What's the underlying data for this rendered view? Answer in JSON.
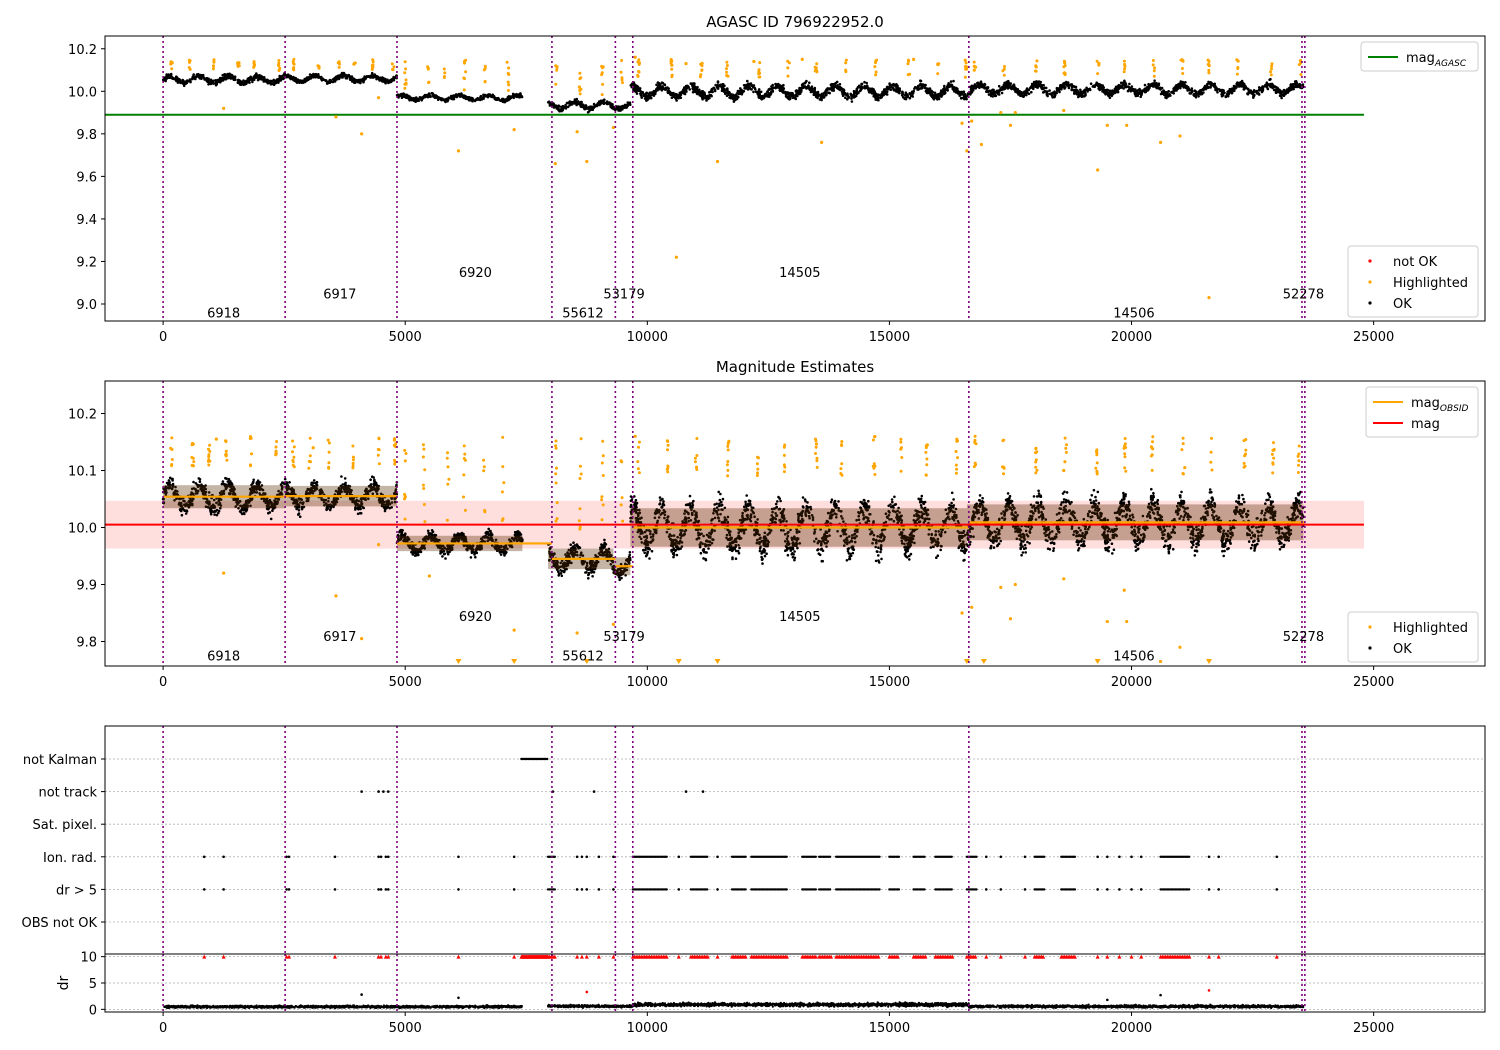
{
  "chart_data": [
    {
      "type": "scatter",
      "title": "AGASC ID 796922952.0",
      "xlim": [
        -1200,
        27300
      ],
      "ylim": [
        8.92,
        10.26
      ],
      "xticks": [
        0,
        5000,
        10000,
        15000,
        20000,
        25000
      ],
      "yticks": [
        9.0,
        9.2,
        9.4,
        9.6,
        9.8,
        10.0,
        10.2
      ],
      "xtick_labels": [
        "0",
        "5000",
        "10000",
        "15000",
        "20000",
        "25000"
      ],
      "ytick_labels": [
        "9.0",
        "9.2",
        "9.4",
        "9.6",
        "9.8",
        "10.0",
        "10.2"
      ],
      "hline": {
        "name": "mag_AGASC",
        "y": 9.89,
        "xmin": -1200,
        "xmax": 24800,
        "color": "#008000"
      },
      "ok_segments": [
        {
          "x0": 0,
          "x1": 2520,
          "ymid": 10.055,
          "spread": 0.035
        },
        {
          "x0": 2520,
          "x1": 4830,
          "ymid": 10.06,
          "spread": 0.03
        },
        {
          "x0": 4830,
          "x1": 7420,
          "ymid": 9.97,
          "spread": 0.025
        },
        {
          "x0": 7950,
          "x1": 9300,
          "ymid": 9.935,
          "spread": 0.035
        },
        {
          "x0": 9300,
          "x1": 9650,
          "ymid": 9.93,
          "spread": 0.03
        },
        {
          "x0": 9650,
          "x1": 16600,
          "ymid": 10.0,
          "spread": 0.055
        },
        {
          "x0": 16600,
          "x1": 23550,
          "ymid": 10.01,
          "spread": 0.05
        }
      ],
      "highlighted_points": [
        {
          "x": 1250,
          "y": 9.92
        },
        {
          "x": 4100,
          "y": 9.8
        },
        {
          "x": 3570,
          "y": 9.88
        },
        {
          "x": 4450,
          "y": 9.97
        },
        {
          "x": 6100,
          "y": 9.72
        },
        {
          "x": 7250,
          "y": 9.82
        },
        {
          "x": 8100,
          "y": 9.66
        },
        {
          "x": 8550,
          "y": 9.81
        },
        {
          "x": 8750,
          "y": 9.67
        },
        {
          "x": 9300,
          "y": 9.83
        },
        {
          "x": 10600,
          "y": 9.22
        },
        {
          "x": 11450,
          "y": 9.67
        },
        {
          "x": 13600,
          "y": 9.76
        },
        {
          "x": 16500,
          "y": 9.85
        },
        {
          "x": 16600,
          "y": 9.72
        },
        {
          "x": 16700,
          "y": 9.86
        },
        {
          "x": 16900,
          "y": 9.75
        },
        {
          "x": 17300,
          "y": 9.9
        },
        {
          "x": 17500,
          "y": 9.84
        },
        {
          "x": 17600,
          "y": 9.9
        },
        {
          "x": 18600,
          "y": 9.91
        },
        {
          "x": 19300,
          "y": 9.63
        },
        {
          "x": 19500,
          "y": 9.84
        },
        {
          "x": 19900,
          "y": 9.84
        },
        {
          "x": 20600,
          "y": 9.76
        },
        {
          "x": 21000,
          "y": 9.79
        },
        {
          "x": 21600,
          "y": 9.03
        },
        {
          "x": 12200,
          "y": 10.14
        },
        {
          "x": 13200,
          "y": 10.15
        },
        {
          "x": 15500,
          "y": 10.15
        },
        {
          "x": 9750,
          "y": 10.16
        },
        {
          "x": 10800,
          "y": 10.13
        }
      ],
      "vlines": [
        0,
        2520,
        4830,
        8030,
        9340,
        9700,
        16640,
        23520,
        23580
      ],
      "obsid_labels": [
        {
          "text": "6918",
          "x": 1250,
          "y": 8.96
        },
        {
          "text": "6917",
          "x": 3650,
          "y": 9.05
        },
        {
          "text": "6920",
          "x": 6450,
          "y": 9.15
        },
        {
          "text": "55612",
          "x": 8670,
          "y": 8.96
        },
        {
          "text": "53179",
          "x": 9520,
          "y": 9.05
        },
        {
          "text": "14505",
          "x": 13150,
          "y": 9.15
        },
        {
          "text": "14506",
          "x": 20050,
          "y": 8.96
        },
        {
          "text": "52278",
          "x": 23550,
          "y": 9.05
        }
      ],
      "legends": [
        {
          "entries": [
            {
              "label": "mag",
              "sub": "AGASC",
              "kind": "line",
              "color": "#008000"
            }
          ],
          "placement": "top-right"
        },
        {
          "entries": [
            {
              "label": "not OK",
              "kind": "dot",
              "color": "#ff0000"
            },
            {
              "label": "Highlighted",
              "kind": "dot",
              "color": "#ffa500"
            },
            {
              "label": "OK",
              "kind": "dot",
              "color": "#000000"
            }
          ],
          "placement": "bottom-right"
        }
      ]
    },
    {
      "type": "scatter",
      "title": "Magnitude Estimates",
      "xlim": [
        -1200,
        27300
      ],
      "ylim": [
        9.757,
        10.257
      ],
      "xticks": [
        0,
        5000,
        10000,
        15000,
        20000,
        25000
      ],
      "yticks": [
        9.8,
        9.9,
        10.0,
        10.1,
        10.2
      ],
      "xtick_labels": [
        "0",
        "5000",
        "10000",
        "15000",
        "20000",
        "25000"
      ],
      "ytick_labels": [
        "9.8",
        "9.9",
        "10.0",
        "10.1",
        "10.2"
      ],
      "mag": {
        "y": 10.005,
        "band": [
          9.963,
          10.047
        ],
        "xmin": -1200,
        "xmax": 24800,
        "color": "#ff0000"
      },
      "mag_obsid": [
        {
          "x0": 0,
          "x1": 2520,
          "y": 10.054
        },
        {
          "x0": 2520,
          "x1": 4830,
          "y": 10.055
        },
        {
          "x0": 4830,
          "x1": 8030,
          "y": 9.972
        },
        {
          "x0": 8030,
          "x1": 9340,
          "y": 9.945
        },
        {
          "x0": 9340,
          "x1": 9700,
          "y": 9.932
        },
        {
          "x0": 9700,
          "x1": 16640,
          "y": 10.0
        },
        {
          "x0": 16640,
          "x1": 23580,
          "y": 10.009
        }
      ],
      "ok_segments": [
        {
          "x0": 0,
          "x1": 2520,
          "ymid": 10.054,
          "spread": 0.045
        },
        {
          "x0": 2520,
          "x1": 4830,
          "ymid": 10.055,
          "spread": 0.04
        },
        {
          "x0": 4830,
          "x1": 7420,
          "ymid": 9.972,
          "spread": 0.03
        },
        {
          "x0": 7950,
          "x1": 9300,
          "ymid": 9.945,
          "spread": 0.04
        },
        {
          "x0": 9300,
          "x1": 9650,
          "ymid": 9.932,
          "spread": 0.035
        },
        {
          "x0": 9650,
          "x1": 16600,
          "ymid": 10.0,
          "spread": 0.075
        },
        {
          "x0": 16600,
          "x1": 23550,
          "ymid": 10.009,
          "spread": 0.07
        }
      ],
      "highlighted_points": [
        {
          "x": 1250,
          "y": 9.92
        },
        {
          "x": 3570,
          "y": 9.88
        },
        {
          "x": 4100,
          "y": 9.805
        },
        {
          "x": 4450,
          "y": 9.97
        },
        {
          "x": 5500,
          "y": 9.915
        },
        {
          "x": 7250,
          "y": 9.82
        },
        {
          "x": 8550,
          "y": 9.815
        },
        {
          "x": 9300,
          "y": 9.83
        },
        {
          "x": 16500,
          "y": 9.85
        },
        {
          "x": 16700,
          "y": 9.86
        },
        {
          "x": 17300,
          "y": 9.895
        },
        {
          "x": 17500,
          "y": 9.84
        },
        {
          "x": 17600,
          "y": 9.9
        },
        {
          "x": 18600,
          "y": 9.91
        },
        {
          "x": 19500,
          "y": 9.835
        },
        {
          "x": 19900,
          "y": 9.835
        },
        {
          "x": 19850,
          "y": 9.89
        },
        {
          "x": 20600,
          "y": 9.765
        },
        {
          "x": 21000,
          "y": 9.79
        },
        {
          "x": 21100,
          "y": 10.105
        },
        {
          "x": 18600,
          "y": 10.1
        },
        {
          "x": 9750,
          "y": 10.16
        },
        {
          "x": 1100,
          "y": 10.155
        },
        {
          "x": 3100,
          "y": 10.14
        }
      ],
      "offscale_markers": [
        6100,
        7250,
        8750,
        10650,
        11450,
        16600,
        16950,
        19300,
        21600
      ],
      "vlines": [
        0,
        2520,
        4830,
        8030,
        9340,
        9700,
        16640,
        23520,
        23580
      ],
      "obsid_labels": [
        {
          "text": "6918",
          "x": 1250,
          "y": 9.775
        },
        {
          "text": "6917",
          "x": 3650,
          "y": 9.81
        },
        {
          "text": "6920",
          "x": 6450,
          "y": 9.845
        },
        {
          "text": "55612",
          "x": 8670,
          "y": 9.775
        },
        {
          "text": "53179",
          "x": 9520,
          "y": 9.81
        },
        {
          "text": "14505",
          "x": 13150,
          "y": 9.845
        },
        {
          "text": "14506",
          "x": 20050,
          "y": 9.775
        },
        {
          "text": "52278",
          "x": 23550,
          "y": 9.81
        }
      ],
      "legends": [
        {
          "entries": [
            {
              "label": "mag",
              "sub": "OBSID",
              "kind": "line",
              "color": "#ffa500"
            },
            {
              "label": "mag",
              "kind": "line",
              "color": "#ff0000"
            }
          ],
          "placement": "top-right"
        },
        {
          "entries": [
            {
              "label": "Highlighted",
              "kind": "dot",
              "color": "#ffa500"
            },
            {
              "label": "OK",
              "kind": "dot",
              "color": "#000000"
            }
          ],
          "placement": "bottom-right"
        }
      ]
    },
    {
      "type": "scatter",
      "title": "",
      "xlim": [
        -1200,
        27300
      ],
      "categories": [
        "not Kalman",
        "not track",
        "Sat. pixel.",
        "Ion. rad.",
        "dr > 5",
        "OBS not OK"
      ],
      "flag_points": {
        "not Kalman": [
          [
            7400,
            7950
          ]
        ],
        "not track": [
          4100,
          4450,
          4550,
          4650,
          8050,
          8900,
          10800,
          11150
        ],
        "Sat. pixel.": [],
        "Ion. rad.": [
          850,
          1250,
          2550,
          2600,
          3550,
          4450,
          4500,
          4600,
          4650,
          6100,
          7250,
          [
            7950,
            8100
          ],
          8550,
          8650,
          8750,
          9000,
          9300,
          [
            9700,
            10400
          ],
          10650,
          [
            10900,
            11250
          ],
          11450,
          [
            11750,
            12050
          ],
          [
            12150,
            12900
          ],
          [
            13200,
            13500
          ],
          [
            13550,
            13800
          ],
          [
            13900,
            14800
          ],
          [
            15000,
            15200
          ],
          [
            15500,
            15750
          ],
          [
            15950,
            16300
          ],
          [
            16600,
            16800
          ],
          17000,
          17300,
          17800,
          [
            18000,
            18200
          ],
          [
            18550,
            18850
          ],
          19300,
          19500,
          19750,
          20000,
          20200,
          [
            20600,
            21200
          ],
          21600,
          21800,
          23000
        ],
        "dr > 5": [
          850,
          1250,
          2550,
          2600,
          3550,
          4450,
          4500,
          4600,
          4650,
          6100,
          7250,
          [
            7950,
            8100
          ],
          8550,
          8650,
          8750,
          9000,
          9300,
          [
            9700,
            10400
          ],
          10650,
          [
            10900,
            11250
          ],
          11450,
          [
            11750,
            12050
          ],
          [
            12150,
            12900
          ],
          [
            13200,
            13500
          ],
          [
            13550,
            13800
          ],
          [
            13900,
            14800
          ],
          [
            15000,
            15200
          ],
          [
            15500,
            15750
          ],
          [
            15950,
            16300
          ],
          [
            16600,
            16800
          ],
          17000,
          17300,
          17800,
          [
            18000,
            18200
          ],
          [
            18550,
            18850
          ],
          19300,
          19500,
          19750,
          20000,
          20200,
          [
            20600,
            21200
          ],
          21600,
          21800,
          23000
        ],
        "OBS not OK": []
      },
      "vlines": [
        0,
        2520,
        4830,
        8030,
        9340,
        9700,
        16640,
        23520,
        23580
      ]
    },
    {
      "type": "scatter",
      "title": "",
      "ylabel": "dr",
      "xlim": [
        -1200,
        27300
      ],
      "ylim": [
        -0.5,
        10.5
      ],
      "xticks": [
        0,
        5000,
        10000,
        15000,
        20000,
        25000
      ],
      "yticks": [
        0,
        5,
        10
      ],
      "xtick_labels": [
        "0",
        "5000",
        "10000",
        "15000",
        "20000",
        "25000"
      ],
      "ytick_labels": [
        "0",
        "5",
        "10"
      ],
      "dr_segments": [
        {
          "x0": 0,
          "x1": 7420,
          "ymid": 0.5,
          "spread": 0.35
        },
        {
          "x0": 7950,
          "x1": 9700,
          "ymid": 0.6,
          "spread": 0.35
        },
        {
          "x0": 9700,
          "x1": 16640,
          "ymid": 0.9,
          "spread": 0.55
        },
        {
          "x0": 16640,
          "x1": 23550,
          "ymid": 0.55,
          "spread": 0.4
        }
      ],
      "outliers": [
        {
          "x": 4100,
          "y": 2.8
        },
        {
          "x": 6100,
          "y": 2.2
        },
        {
          "x": 8750,
          "y": 3.3
        },
        {
          "x": 19500,
          "y": 1.8
        },
        {
          "x": 20600,
          "y": 2.7
        },
        {
          "x": 21600,
          "y": 3.6
        }
      ],
      "clipped_at": 10,
      "vlines": [
        0,
        2520,
        4830,
        8030,
        9340,
        9700,
        16640,
        23520,
        23580
      ]
    }
  ]
}
